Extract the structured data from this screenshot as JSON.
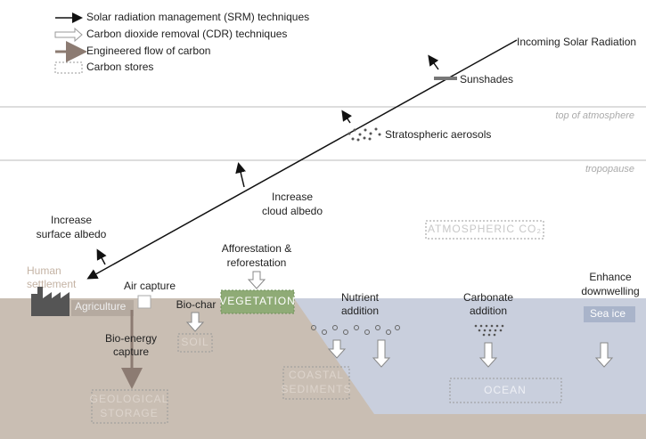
{
  "legend": [
    "Solar radiation management (SRM) techniques",
    "Carbon dioxide removal (CDR) techniques",
    "Engineered flow of carbon",
    "Carbon stores"
  ],
  "labels": {
    "incoming": "Incoming Solar Radiation",
    "sunshades": "Sunshades",
    "top_atmosphere": "top of atmosphere",
    "aerosols": "Stratospheric aerosols",
    "tropopause": "tropopause",
    "cloud_albedo": [
      "Increase",
      "cloud albedo"
    ],
    "surface_albedo": [
      "Increase",
      "surface albedo"
    ],
    "atmospheric_co2": "ATMOSPHERIC CO₂",
    "human_settlement": [
      "Human",
      "settlement"
    ],
    "agriculture": "Agriculture",
    "air_capture": "Air capture",
    "afforestation": [
      "Afforestation &",
      "reforestation"
    ],
    "vegetation": "VEGETATION",
    "bio_char": "Bio-char",
    "soil": "SOIL",
    "bio_energy": [
      "Bio-energy",
      "capture"
    ],
    "geological_storage": [
      "GEOLOGICAL",
      "STORAGE"
    ],
    "nutrient": [
      "Nutrient",
      "addition"
    ],
    "carbonate": [
      "Carbonate",
      "addition"
    ],
    "downwelling": [
      "Enhance",
      "downwelling"
    ],
    "sea_ice": "Sea ice",
    "coastal_sediments": [
      "COASTAL",
      "SEDIMENTS"
    ],
    "ocean": "OCEAN"
  }
}
